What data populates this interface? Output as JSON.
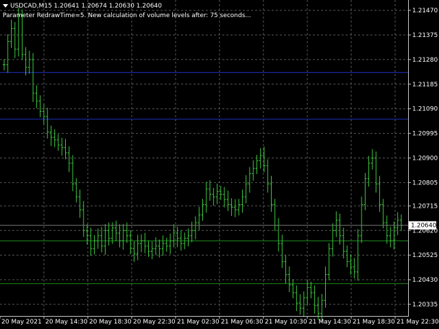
{
  "header": {
    "symbol_line": "USDCAD,M15  1.20641 1.20674 1.20630 1.20640",
    "message": "Parameter RedrawTime=5. New calculation of volume levels after: 75 seconds..."
  },
  "colors": {
    "background": "#000000",
    "grid": "#5a5a5a",
    "bars": "#3ecf3e",
    "blue_level": "#2233cc",
    "green_level": "#1f8f1f",
    "price_box_bg": "#ffffff",
    "text": "#ffffff"
  },
  "price_axis": {
    "labels": [
      "1.21470",
      "1.21375",
      "1.21280",
      "1.21185",
      "1.21090",
      "1.20995",
      "1.20900",
      "1.20805",
      "1.20715",
      "1.20620",
      "1.20525",
      "1.20430",
      "1.20335"
    ],
    "current_price": "1.20640"
  },
  "time_axis": {
    "labels": [
      "20 May 2021",
      "20 May 14:30",
      "20 May 18:30",
      "20 May 22:30",
      "21 May 02:30",
      "21 May 06:30",
      "21 May 10:30",
      "21 May 14:30",
      "21 May 18:30",
      "21 May 22:30"
    ]
  },
  "chart_data": {
    "type": "line",
    "series": [
      {
        "values": [
          1.2126,
          1.2135,
          1.214,
          1.2132,
          1.2145,
          1.213,
          1.2125,
          1.2128,
          1.2115,
          1.2112,
          1.2108,
          1.2106,
          1.21,
          1.2098,
          1.2097,
          1.2095,
          1.2094,
          1.2092,
          1.2088,
          1.208,
          1.2075,
          1.207,
          1.2062,
          1.206,
          1.2055,
          1.2058,
          1.206,
          1.2056,
          1.2062,
          1.2059,
          1.2063,
          1.2061,
          1.2058,
          1.2062,
          1.206,
          1.2055,
          1.2053,
          1.2057,
          1.2058,
          1.2056,
          1.2054,
          1.2055,
          1.2056,
          1.2055,
          1.2057,
          1.2056,
          1.2058,
          1.2061,
          1.2059,
          1.2057,
          1.2059,
          1.206,
          1.2062,
          1.2065,
          1.2068,
          1.2072,
          1.2078,
          1.2076,
          1.2075,
          1.2077,
          1.2076,
          1.2074,
          1.2072,
          1.2071,
          1.207,
          1.2072,
          1.2075,
          1.208,
          1.2084,
          1.2086,
          1.2089,
          1.2091,
          1.2087,
          1.208,
          1.2072,
          1.2064,
          1.2057,
          1.205,
          1.2045,
          1.2041,
          1.2038,
          1.2034,
          1.2032,
          1.2036,
          1.204,
          1.2038,
          1.2033,
          1.203,
          1.2035,
          1.2045,
          1.2055,
          1.2062,
          1.2066,
          1.206,
          1.2054,
          1.205,
          1.2048,
          1.2046,
          1.206,
          1.2072,
          1.2082,
          1.2088,
          1.209,
          1.208,
          1.2072,
          1.2065,
          1.206,
          1.2058,
          1.2063,
          1.2066,
          1.2064
        ]
      }
    ],
    "levels": [
      1.2123,
      1.2105,
      1.2058,
      1.20415
    ],
    "ylim": [
      1.2029,
      1.2151
    ],
    "grid": true
  }
}
